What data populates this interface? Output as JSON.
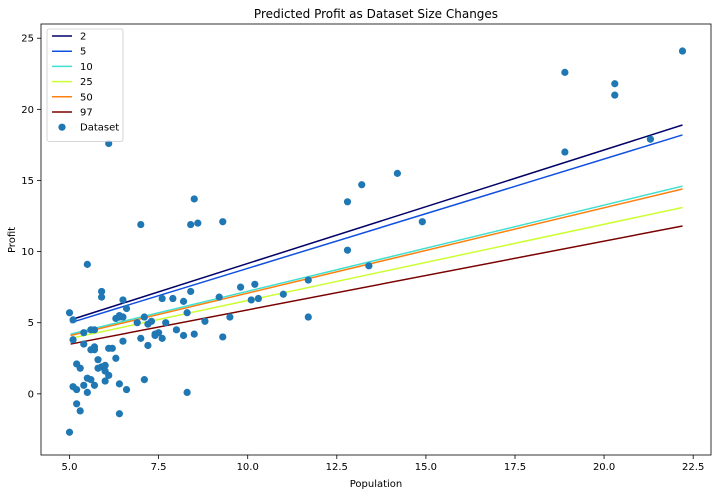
{
  "chart_data": {
    "type": "scatter",
    "title": "Predicted Profit as Dataset Size Changes",
    "xlabel": "Population",
    "ylabel": "Profit",
    "xlim": [
      4.2,
      23.0
    ],
    "ylim": [
      -4.3,
      26.0
    ],
    "xticks": [
      5.0,
      7.5,
      10.0,
      12.5,
      15.0,
      17.5,
      20.0,
      22.5
    ],
    "xtick_labels": [
      "5.0",
      "7.5",
      "10.0",
      "12.5",
      "15.0",
      "17.5",
      "20.0",
      "22.5"
    ],
    "yticks": [
      0,
      5,
      10,
      15,
      20,
      25
    ],
    "ytick_labels": [
      "0",
      "5",
      "10",
      "15",
      "20",
      "25"
    ],
    "grid": false,
    "legend_position": "top-left",
    "lines": [
      {
        "name": "2",
        "color": "#000066",
        "x": [
          5.03,
          22.2
        ],
        "y": [
          5.2,
          18.9
        ]
      },
      {
        "name": "5",
        "color": "#1050e0",
        "x": [
          5.03,
          22.2
        ],
        "y": [
          5.0,
          18.2
        ]
      },
      {
        "name": "10",
        "color": "#40e0d0",
        "x": [
          5.03,
          22.2
        ],
        "y": [
          4.2,
          14.6
        ]
      },
      {
        "name": "25",
        "color": "#ccff33",
        "x": [
          5.03,
          22.2
        ],
        "y": [
          3.9,
          13.1
        ]
      },
      {
        "name": "50",
        "color": "#ff7f0e",
        "x": [
          5.03,
          22.2
        ],
        "y": [
          4.1,
          14.4
        ]
      },
      {
        "name": "97",
        "color": "#7a0000",
        "x": [
          5.03,
          22.2
        ],
        "y": [
          3.5,
          11.8
        ]
      }
    ],
    "scatter": {
      "name": "Dataset",
      "color": "#1f77b4",
      "points": [
        [
          6.1,
          17.6
        ],
        [
          5.5,
          9.1
        ],
        [
          8.5,
          13.7
        ],
        [
          7.0,
          11.9
        ],
        [
          5.9,
          6.8
        ],
        [
          8.4,
          11.9
        ],
        [
          7.5,
          4.3
        ],
        [
          8.6,
          12.0
        ],
        [
          6.5,
          6.6
        ],
        [
          5.1,
          3.8
        ],
        [
          5.7,
          3.3
        ],
        [
          14.2,
          15.5
        ],
        [
          5.7,
          3.1
        ],
        [
          6.0,
          2.0
        ],
        [
          6.6,
          0.3
        ],
        [
          5.3,
          1.8
        ],
        [
          5.1,
          0.5
        ],
        [
          5.5,
          0.1
        ],
        [
          5.4,
          3.5
        ],
        [
          6.4,
          5.4
        ],
        [
          5.0,
          5.7
        ],
        [
          5.1,
          5.2
        ],
        [
          6.1,
          1.3
        ],
        [
          5.0,
          -2.7
        ],
        [
          5.2,
          -0.7
        ],
        [
          5.3,
          -1.2
        ],
        [
          5.2,
          0.3
        ],
        [
          5.4,
          0.6
        ],
        [
          5.6,
          1.0
        ],
        [
          5.7,
          0.6
        ],
        [
          5.8,
          2.4
        ],
        [
          5.5,
          1.1
        ],
        [
          5.6,
          4.5
        ],
        [
          5.9,
          1.9
        ],
        [
          6.0,
          1.6
        ],
        [
          6.4,
          -1.4
        ],
        [
          6.4,
          0.7
        ],
        [
          6.3,
          2.5
        ],
        [
          6.2,
          3.2
        ],
        [
          6.5,
          3.7
        ],
        [
          6.0,
          0.9
        ],
        [
          5.9,
          7.2
        ],
        [
          6.6,
          6.0
        ],
        [
          6.5,
          5.4
        ],
        [
          6.4,
          5.5
        ],
        [
          7.0,
          3.9
        ],
        [
          7.1,
          1.0
        ],
        [
          7.2,
          4.9
        ],
        [
          7.2,
          3.4
        ],
        [
          7.4,
          4.2
        ],
        [
          7.6,
          3.9
        ],
        [
          7.6,
          6.7
        ],
        [
          7.1,
          5.4
        ],
        [
          7.7,
          5.0
        ],
        [
          7.9,
          6.7
        ],
        [
          8.0,
          4.5
        ],
        [
          8.2,
          4.1
        ],
        [
          8.2,
          6.5
        ],
        [
          8.3,
          5.7
        ],
        [
          8.4,
          7.2
        ],
        [
          8.5,
          4.2
        ],
        [
          8.3,
          0.1
        ],
        [
          8.8,
          5.1
        ],
        [
          9.2,
          6.8
        ],
        [
          9.3,
          12.1
        ],
        [
          9.3,
          4.0
        ],
        [
          9.5,
          5.4
        ],
        [
          9.8,
          7.5
        ],
        [
          10.1,
          6.6
        ],
        [
          10.2,
          7.7
        ],
        [
          10.3,
          6.7
        ],
        [
          11.0,
          7.0
        ],
        [
          11.7,
          8.0
        ],
        [
          11.7,
          5.4
        ],
        [
          12.8,
          13.5
        ],
        [
          12.8,
          10.1
        ],
        [
          13.2,
          14.7
        ],
        [
          13.4,
          9.0
        ],
        [
          14.9,
          12.1
        ],
        [
          18.9,
          22.6
        ],
        [
          18.9,
          17.0
        ],
        [
          20.3,
          21.8
        ],
        [
          20.3,
          21.0
        ],
        [
          21.3,
          17.9
        ],
        [
          22.2,
          24.1
        ],
        [
          5.2,
          2.1
        ],
        [
          5.7,
          4.5
        ],
        [
          5.4,
          4.3
        ],
        [
          7.4,
          4.1
        ],
        [
          6.9,
          5.0
        ],
        [
          7.3,
          5.1
        ],
        [
          6.1,
          3.2
        ],
        [
          5.8,
          1.8
        ],
        [
          5.6,
          3.1
        ],
        [
          6.3,
          5.3
        ]
      ]
    }
  }
}
